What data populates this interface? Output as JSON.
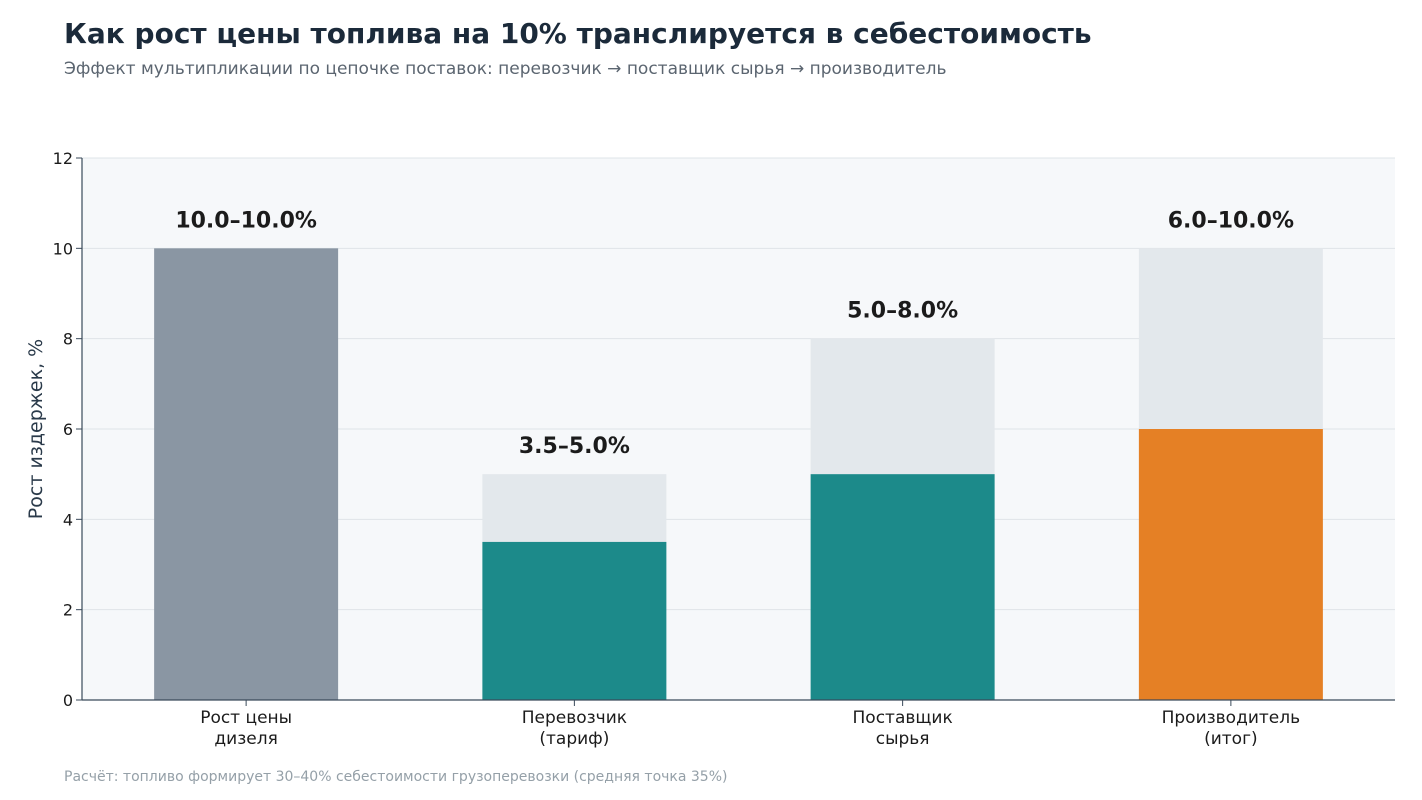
{
  "chart_data": {
    "type": "bar",
    "title": "Как рост цены топлива на 10% транслируется в себестоимость",
    "subtitle": "Эффект мультипликации по цепочке поставок: перевозчик → поставщик сырья → производитель",
    "ylabel": "Рост издержек, %",
    "xlabel": "",
    "ylim": [
      0,
      12
    ],
    "yticks": [
      "0",
      "2",
      "4",
      "6",
      "8",
      "10",
      "12"
    ],
    "grid": true,
    "categories": [
      {
        "lines": [
          "Рост цены",
          "дизеля"
        ]
      },
      {
        "lines": [
          "Перевозчик",
          "(тариф)"
        ]
      },
      {
        "lines": [
          "Поставщик",
          "сырья"
        ]
      },
      {
        "lines": [
          "Производитель",
          "(итог)"
        ]
      }
    ],
    "series": [
      {
        "low": 10.0,
        "high": 10.0,
        "label": "10.0–10.0%",
        "color": "#8a96a3",
        "range_color": "#e3e8ec"
      },
      {
        "low": 3.5,
        "high": 5.0,
        "label": "3.5–5.0%",
        "color": "#1c8a8a",
        "range_color": "#e3e8ec"
      },
      {
        "low": 5.0,
        "high": 8.0,
        "label": "5.0–8.0%",
        "color": "#1c8a8a",
        "range_color": "#e3e8ec"
      },
      {
        "low": 6.0,
        "high": 10.0,
        "label": "6.0–10.0%",
        "color": "#e58025",
        "range_color": "#e3e8ec"
      }
    ],
    "footnote": "Расчёт: топливо формирует 30–40% себестоимости грузоперевозки (средняя точка 35%)",
    "colors": {
      "plot_background": "#f6f8fa",
      "grid": "#dfe4e8",
      "axis": "#3a4a5a",
      "title": "#1b2a3a",
      "subtitle": "#5b6570",
      "footnote": "#95a0a8"
    }
  }
}
